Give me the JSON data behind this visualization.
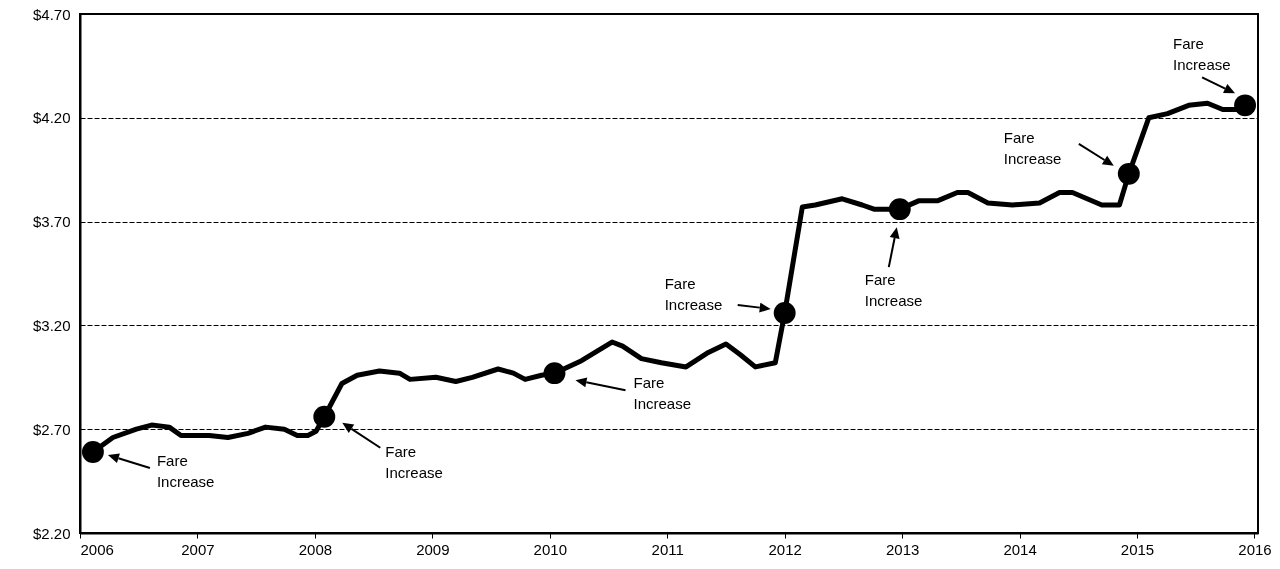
{
  "chart_data": {
    "type": "line",
    "xlim": [
      2006,
      2016.03
    ],
    "xticks": [
      2006,
      2007,
      2008,
      2009,
      2010,
      2011,
      2012,
      2013,
      2014,
      2015,
      2016
    ],
    "ylim": [
      2.2,
      4.7
    ],
    "yticks": [
      {
        "value": 2.2,
        "label": "$2.20"
      },
      {
        "value": 2.7,
        "label": "$2.70"
      },
      {
        "value": 3.2,
        "label": "$3.20"
      },
      {
        "value": 3.7,
        "label": "$3.70"
      },
      {
        "value": 4.2,
        "label": "$4.20"
      },
      {
        "value": 4.7,
        "label": "$4.70"
      }
    ],
    "grid": "y",
    "series": [
      {
        "type": "line",
        "color": "#000000",
        "x": [
          2006.11,
          2006.28,
          2006.48,
          2006.61,
          2006.76,
          2006.86,
          2007.1,
          2007.26,
          2007.43,
          2007.58,
          2007.74,
          2007.85,
          2007.94,
          2008.01,
          2008.08,
          2008.23,
          2008.36,
          2008.55,
          2008.72,
          2008.81,
          2009.03,
          2009.2,
          2009.34,
          2009.56,
          2009.69,
          2009.79,
          2009.93,
          2010.04,
          2010.27,
          2010.53,
          2010.62,
          2010.78,
          2010.95,
          2011.16,
          2011.35,
          2011.5,
          2011.62,
          2011.75,
          2011.92,
          2012.0,
          2012.15,
          2012.26,
          2012.49,
          2012.66,
          2012.76,
          2012.98,
          2013.14,
          2013.3,
          2013.47,
          2013.56,
          2013.73,
          2013.94,
          2014.17,
          2014.34,
          2014.45,
          2014.7,
          2014.85,
          2014.93,
          2015.1,
          2015.26,
          2015.44,
          2015.6,
          2015.73,
          2015.85,
          2015.92
        ],
        "values": [
          2.59,
          2.66,
          2.7,
          2.72,
          2.71,
          2.67,
          2.67,
          2.66,
          2.68,
          2.71,
          2.7,
          2.67,
          2.67,
          2.69,
          2.76,
          2.92,
          2.96,
          2.98,
          2.97,
          2.94,
          2.95,
          2.93,
          2.95,
          2.99,
          2.97,
          2.94,
          2.96,
          2.97,
          3.03,
          3.12,
          3.1,
          3.04,
          3.02,
          3.0,
          3.07,
          3.11,
          3.06,
          3.0,
          3.02,
          3.26,
          3.77,
          3.78,
          3.81,
          3.78,
          3.76,
          3.76,
          3.8,
          3.8,
          3.84,
          3.84,
          3.79,
          3.78,
          3.79,
          3.84,
          3.84,
          3.78,
          3.78,
          3.93,
          4.2,
          4.22,
          4.26,
          4.27,
          4.24,
          4.24,
          4.26
        ]
      },
      {
        "type": "scatter",
        "color": "#000000",
        "marker": "circle",
        "x": [
          2006.11,
          2008.08,
          2010.04,
          2012.0,
          2012.98,
          2014.93,
          2015.92
        ],
        "values": [
          2.59,
          2.76,
          2.97,
          3.26,
          3.76,
          3.93,
          4.26
        ]
      }
    ],
    "annotations": [
      "Fare Increase",
      "Fare Increase",
      "Fare Increase",
      "Fare Increase",
      "Fare Increase",
      "Fare Increase",
      "Fare Increase"
    ]
  }
}
